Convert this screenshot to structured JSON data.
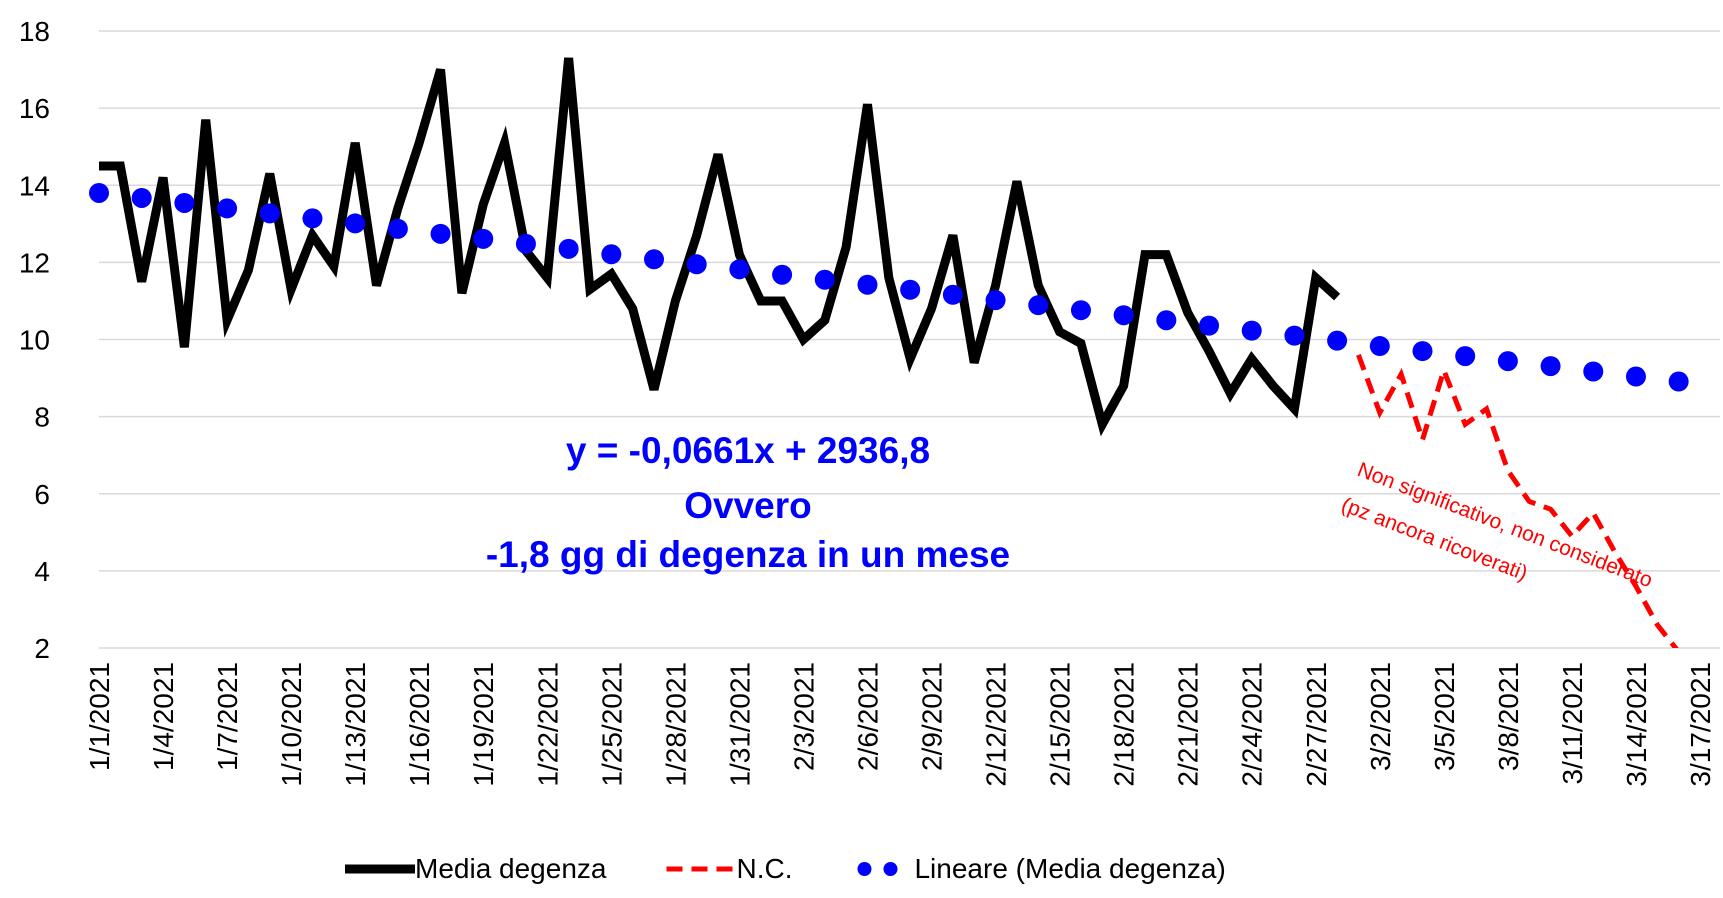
{
  "chart_data": {
    "type": "line",
    "categories": [
      "1/1/2021",
      null,
      null,
      "1/4/2021",
      null,
      null,
      "1/7/2021",
      null,
      null,
      "1/10/2021",
      null,
      null,
      "1/13/2021",
      null,
      null,
      "1/16/2021",
      null,
      null,
      "1/19/2021",
      null,
      null,
      "1/22/2021",
      null,
      null,
      "1/25/2021",
      null,
      null,
      "1/28/2021",
      null,
      null,
      "1/31/2021",
      null,
      null,
      "2/3/2021",
      null,
      null,
      "2/6/2021",
      null,
      null,
      "2/9/2021",
      null,
      null,
      "2/12/2021",
      null,
      null,
      "2/15/2021",
      null,
      null,
      "2/18/2021",
      null,
      null,
      "2/21/2021",
      null,
      null,
      "2/24/2021",
      null,
      null,
      "2/27/2021",
      null,
      null,
      "3/2/2021",
      null,
      null,
      "3/5/2021",
      null,
      null,
      "3/8/2021",
      null,
      null,
      "3/11/2021",
      null,
      null,
      "3/14/2021",
      null,
      null,
      "3/17/2021"
    ],
    "series": [
      {
        "name": "Media degenza",
        "color": "#000000",
        "line_style": "solid",
        "values": [
          14.5,
          14.5,
          11.5,
          14.2,
          9.8,
          15.7,
          10.5,
          11.8,
          14.3,
          11.3,
          12.7,
          11.9,
          15.1,
          11.4,
          13.4,
          15.1,
          17.0,
          11.2,
          13.5,
          15.1,
          12.3,
          11.6,
          17.3,
          11.3,
          11.7,
          10.8,
          8.7,
          11.0,
          12.7,
          14.8,
          12.2,
          11.0,
          11.0,
          10.0,
          10.5,
          12.4,
          16.1,
          11.6,
          9.5,
          10.8,
          12.7,
          9.4,
          11.4,
          14.1,
          11.4,
          10.2,
          9.9,
          7.8,
          8.8,
          12.2,
          12.2,
          10.7,
          9.7,
          8.6,
          9.5,
          8.8,
          8.2,
          11.6,
          11.1,
          null,
          null,
          null,
          null,
          null,
          null,
          null,
          null,
          null,
          null,
          null,
          null,
          null,
          null,
          null,
          null,
          null
        ]
      },
      {
        "name": "N.C.",
        "color": "#ff0000",
        "line_style": "dashed",
        "values": [
          null,
          null,
          null,
          null,
          null,
          null,
          null,
          null,
          null,
          null,
          null,
          null,
          null,
          null,
          null,
          null,
          null,
          null,
          null,
          null,
          null,
          null,
          null,
          null,
          null,
          null,
          null,
          null,
          null,
          null,
          null,
          null,
          null,
          null,
          null,
          null,
          null,
          null,
          null,
          null,
          null,
          null,
          null,
          null,
          null,
          null,
          null,
          null,
          null,
          null,
          null,
          null,
          null,
          null,
          null,
          null,
          null,
          null,
          null,
          9.6,
          8.1,
          9.1,
          7.4,
          9.2,
          7.8,
          8.2,
          6.6,
          5.8,
          5.6,
          4.9,
          5.5,
          4.5,
          3.6,
          2.6,
          1.9,
          null
        ]
      },
      {
        "name": "Lineare (Media degenza)",
        "color": "#0000ff",
        "line_style": "dotted",
        "values": [
          13.8,
          null,
          13.67,
          null,
          13.54,
          null,
          13.4,
          null,
          13.27,
          null,
          13.14,
          null,
          13.01,
          null,
          12.87,
          null,
          12.74,
          null,
          12.61,
          null,
          12.48,
          null,
          12.35,
          null,
          12.21,
          null,
          12.08,
          null,
          11.95,
          null,
          11.82,
          null,
          11.68,
          null,
          11.55,
          null,
          11.42,
          null,
          11.29,
          null,
          11.16,
          null,
          11.02,
          null,
          10.89,
          null,
          10.76,
          null,
          10.63,
          null,
          10.5,
          null,
          10.36,
          null,
          10.23,
          null,
          10.1,
          null,
          9.97,
          null,
          9.83,
          null,
          9.7,
          null,
          9.57,
          null,
          9.44,
          null,
          9.31,
          null,
          9.17,
          null,
          9.04,
          null,
          8.91,
          null
        ]
      }
    ],
    "ylim": [
      2,
      18
    ],
    "yticks": [
      2,
      4,
      6,
      8,
      10,
      12,
      14,
      16,
      18
    ],
    "grid": true,
    "legend": "bottom",
    "annotations": [
      "y = -0,0661x + 2936,8",
      "Ovvero",
      "-1,8 gg di degenza in un mese",
      "Non significativo, non considerato",
      "(pz ancora ricoverati)"
    ]
  }
}
